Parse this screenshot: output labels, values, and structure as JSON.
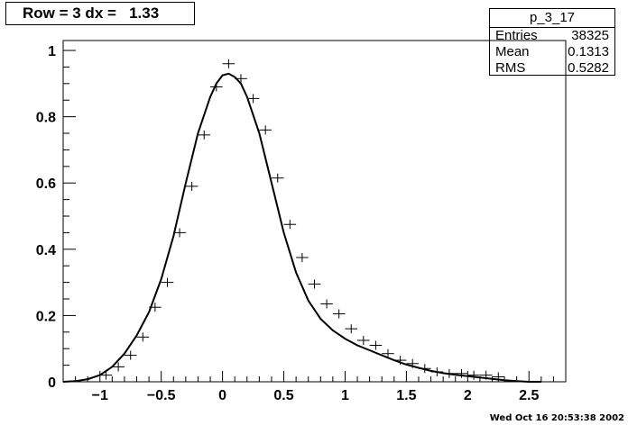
{
  "title": "Row = 3 dx =   1.33",
  "stats": {
    "name": "p_3_17",
    "rows": [
      {
        "label": "Entries",
        "value": "38325"
      },
      {
        "label": "Mean",
        "value": "0.1313"
      },
      {
        "label": "RMS",
        "value": "0.5282"
      }
    ]
  },
  "date_stamp": "Wed Oct 16 20:53:38 2002",
  "chart_data": {
    "type": "scatter",
    "xlim": [
      -1.3,
      2.8
    ],
    "ylim": [
      0,
      1.03
    ],
    "x_ticks": [
      -1,
      -0.5,
      0,
      0.5,
      1,
      1.5,
      2,
      2.5
    ],
    "x_tick_labels": [
      "−1",
      "−0.5",
      "0",
      "0.5",
      "1",
      "1.5",
      "2",
      "2.5"
    ],
    "y_ticks": [
      0,
      0.2,
      0.4,
      0.6,
      0.8,
      1
    ],
    "y_tick_labels": [
      "0",
      "0.2",
      "0.4",
      "0.6",
      "0.8",
      "1"
    ],
    "grid": false,
    "series": [
      {
        "kind": "points_with_errors",
        "bin_half_width": 0.05,
        "x": [
          -0.95,
          -0.85,
          -0.75,
          -0.65,
          -0.55,
          -0.45,
          -0.35,
          -0.25,
          -0.15,
          -0.05,
          0.05,
          0.15,
          0.25,
          0.35,
          0.45,
          0.55,
          0.65,
          0.75,
          0.85,
          0.95,
          1.05,
          1.15,
          1.25,
          1.35,
          1.45,
          1.55,
          1.65,
          1.75,
          1.85,
          1.95,
          2.05,
          2.15,
          2.25
        ],
        "y": [
          0.02,
          0.045,
          0.08,
          0.135,
          0.225,
          0.3,
          0.45,
          0.59,
          0.745,
          0.89,
          0.96,
          0.915,
          0.855,
          0.76,
          0.615,
          0.475,
          0.375,
          0.295,
          0.235,
          0.205,
          0.16,
          0.125,
          0.11,
          0.085,
          0.065,
          0.055,
          0.04,
          0.03,
          0.025,
          0.025,
          0.02,
          0.02,
          0.015
        ]
      },
      {
        "kind": "fit_curve",
        "x": [
          -1.3,
          -1.2,
          -1.1,
          -1.0,
          -0.9,
          -0.8,
          -0.7,
          -0.6,
          -0.5,
          -0.4,
          -0.3,
          -0.2,
          -0.1,
          -0.05,
          0.0,
          0.05,
          0.1,
          0.15,
          0.2,
          0.3,
          0.4,
          0.5,
          0.6,
          0.7,
          0.8,
          0.9,
          1.0,
          1.1,
          1.2,
          1.3,
          1.4,
          1.5,
          1.6,
          1.7,
          1.8,
          1.9,
          2.0,
          2.1,
          2.2,
          2.3,
          2.4,
          2.5,
          2.6
        ],
        "y": [
          0.0,
          0.002,
          0.008,
          0.02,
          0.045,
          0.085,
          0.14,
          0.21,
          0.31,
          0.44,
          0.6,
          0.75,
          0.86,
          0.9,
          0.925,
          0.93,
          0.92,
          0.9,
          0.86,
          0.75,
          0.6,
          0.45,
          0.33,
          0.245,
          0.19,
          0.155,
          0.13,
          0.11,
          0.095,
          0.08,
          0.065,
          0.052,
          0.042,
          0.033,
          0.026,
          0.021,
          0.017,
          0.013,
          0.009,
          0.005,
          0.002,
          0.0,
          0.0
        ]
      }
    ]
  }
}
